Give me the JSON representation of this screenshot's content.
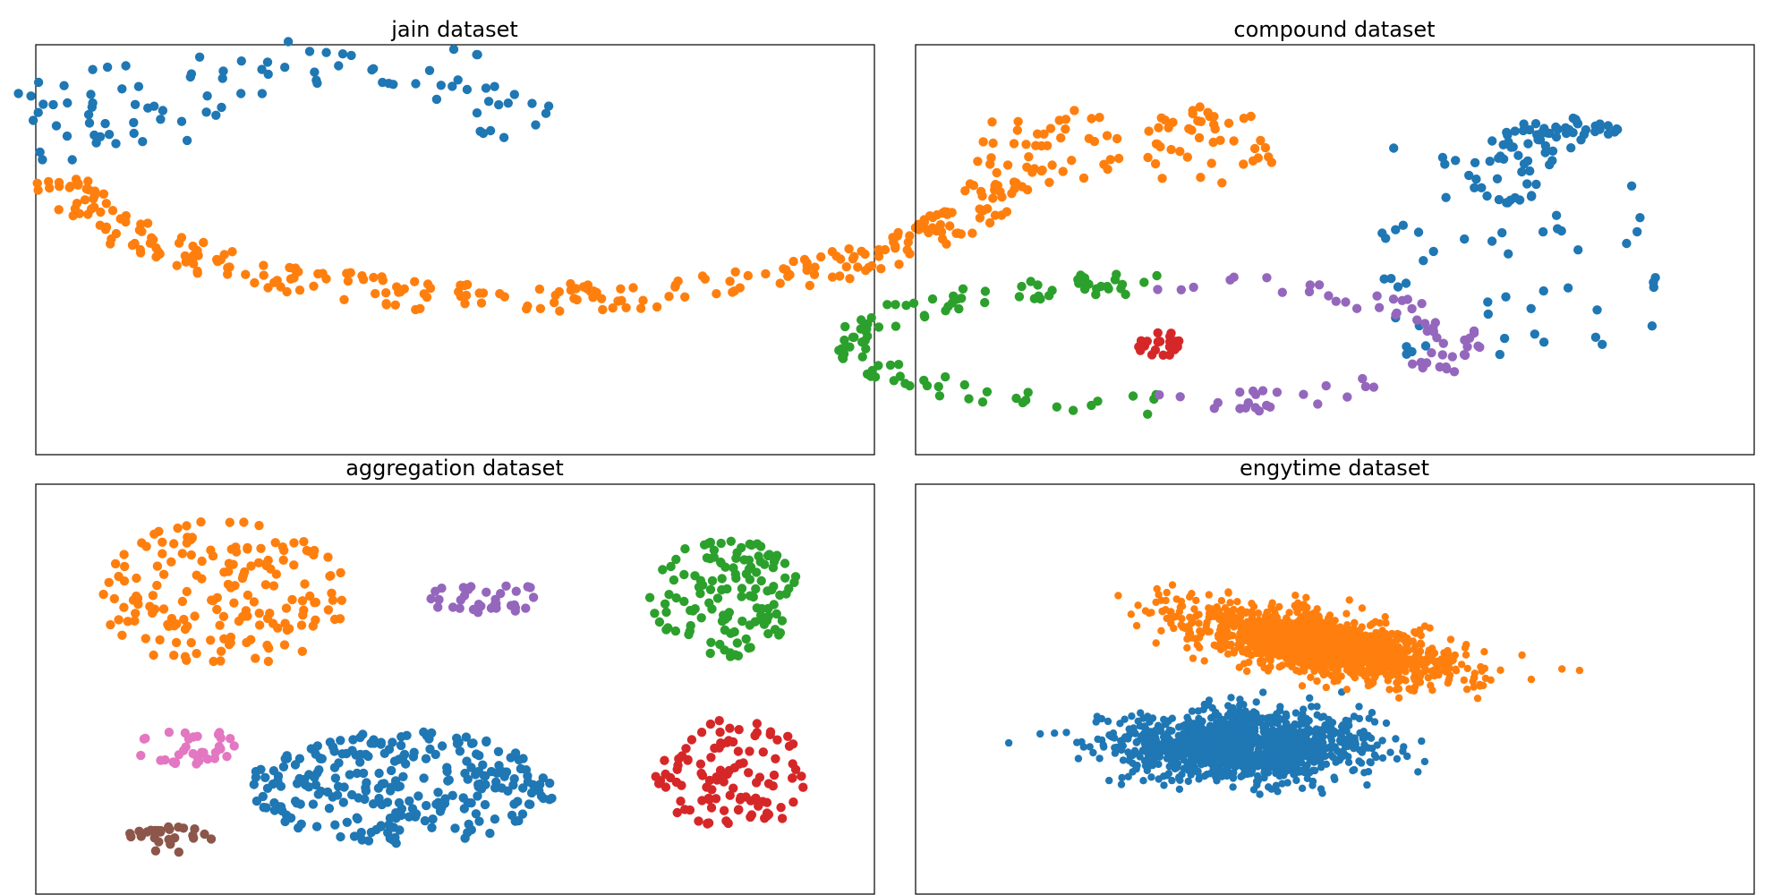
{
  "colors": {
    "blue": "#1f77b4",
    "orange": "#ff7f0e",
    "green": "#2ca02c",
    "red": "#d62728",
    "purple": "#9467bd",
    "brown": "#8c564b",
    "pink": "#e377c2"
  },
  "chart_data": [
    {
      "type": "scatter",
      "title": "jain dataset",
      "axes_visible": false,
      "grid": false,
      "xlim": [
        0,
        100
      ],
      "ylim": [
        0,
        100
      ],
      "clusters": [
        {
          "color": "blue",
          "shape": "upper-arc",
          "count": 95,
          "seed": 11,
          "segments": [
            {
              "center": [
                12,
                85
              ],
              "radius": [
                12,
                15
              ],
              "angle": [
                100,
                260
              ],
              "band": 6,
              "n": 30
            },
            {
              "center": [
                35,
                70
              ],
              "radius": [
                30,
                28
              ],
              "angle": [
                20,
                160
              ],
              "band": 7,
              "n": 65
            }
          ]
        },
        {
          "color": "orange",
          "shape": "lower-arc",
          "count": 280,
          "seed": 12,
          "segments": [
            {
              "center": [
                60,
                75
              ],
              "radius": [
                38,
                62
              ],
              "angle": [
                190,
                350
              ],
              "band": 4,
              "n": 280
            }
          ]
        }
      ]
    },
    {
      "type": "scatter",
      "title": "compound dataset",
      "axes_visible": false,
      "grid": false,
      "xlim": [
        0,
        100
      ],
      "ylim": [
        0,
        100
      ],
      "clusters": [
        {
          "color": "orange",
          "shape": "two-clouds",
          "count": 90,
          "seed": 21,
          "blobs": [
            {
              "center": [
                13,
                77
              ],
              "spread": [
                10,
                12
              ],
              "n": 45
            },
            {
              "center": [
                34,
                77
              ],
              "spread": [
                9,
                12
              ],
              "n": 45
            }
          ]
        },
        {
          "color": "blue",
          "shape": "sparse-field-with-hook",
          "count": 160,
          "seed": 22,
          "blobs": [
            {
              "center": [
                73,
                72
              ],
              "spread": [
                6,
                10
              ],
              "n": 40
            },
            {
              "center": [
                80,
                82
              ],
              "spread": [
                7,
                3
              ],
              "n": 35
            },
            {
              "center": [
                74,
                50
              ],
              "spread": [
                18,
                28
              ],
              "n": 55,
              "uniform": true
            }
          ]
        },
        {
          "color": "green",
          "shape": "ring-left",
          "count": 105,
          "seed": 23,
          "segments": [
            {
              "center": [
                27,
                25
              ],
              "radius": [
                16,
                39
              ],
              "angle": [
                90,
                270
              ],
              "band": 3,
              "n": 105
            }
          ]
        },
        {
          "color": "purple",
          "shape": "ring-right",
          "count": 75,
          "seed": 24,
          "segments": [
            {
              "center": [
                27,
                25
              ],
              "radius": [
                16,
                39
              ],
              "angle": [
                -90,
                90
              ],
              "band": 3,
              "n": 75
            }
          ]
        },
        {
          "color": "red",
          "shape": "core",
          "count": 22,
          "seed": 25,
          "blobs": [
            {
              "center": [
                27,
                25
              ],
              "spread": [
                3,
                4
              ],
              "n": 22
            }
          ]
        }
      ]
    },
    {
      "type": "scatter",
      "title": "aggregation dataset",
      "axes_visible": false,
      "grid": false,
      "xlim": [
        0,
        100
      ],
      "ylim": [
        0,
        100
      ],
      "clusters": [
        {
          "color": "orange",
          "shape": "fan",
          "count": 170,
          "seed": 31,
          "blobs": [
            {
              "center": [
                20,
                75
              ],
              "spread": [
                16,
                20
              ],
              "n": 170
            }
          ]
        },
        {
          "color": "purple",
          "shape": "small-band",
          "count": 34,
          "seed": 32,
          "blobs": [
            {
              "center": [
                54,
                74
              ],
              "spread": [
                9,
                4
              ],
              "n": 34
            }
          ]
        },
        {
          "color": "green",
          "shape": "disc",
          "count": 130,
          "seed": 33,
          "blobs": [
            {
              "center": [
                85,
                74
              ],
              "spread": [
                10,
                16
              ],
              "n": 130
            }
          ]
        },
        {
          "color": "red",
          "shape": "disc",
          "count": 110,
          "seed": 34,
          "blobs": [
            {
              "center": [
                86,
                27
              ],
              "spread": [
                10,
                15
              ],
              "n": 110
            }
          ]
        },
        {
          "color": "pink",
          "shape": "small-blob",
          "count": 34,
          "seed": 35,
          "blobs": [
            {
              "center": [
                15,
                35
              ],
              "spread": [
                7,
                5
              ],
              "n": 34
            }
          ]
        },
        {
          "color": "blue",
          "shape": "large-ellipse",
          "count": 270,
          "seed": 36,
          "blobs": [
            {
              "center": [
                43,
                24
              ],
              "spread": [
                20,
                15
              ],
              "n": 270
            }
          ]
        },
        {
          "color": "brown",
          "shape": "small-blob",
          "count": 26,
          "seed": 37,
          "blobs": [
            {
              "center": [
                13,
                10
              ],
              "spread": [
                6,
                3.5
              ],
              "n": 26
            }
          ]
        }
      ]
    },
    {
      "type": "scatter",
      "title": "engytime dataset",
      "axes_visible": false,
      "grid": false,
      "xlim": [
        0,
        100
      ],
      "ylim": [
        0,
        100
      ],
      "clusters": [
        {
          "color": "blue",
          "shape": "gaussian",
          "count": 1300,
          "seed": 41,
          "blobs": [
            {
              "center": [
                38,
                35
              ],
              "spread": [
                16,
                9
              ],
              "n": 1300,
              "gaussian": true,
              "cut": [
                null,
                50
              ]
            }
          ]
        },
        {
          "color": "orange",
          "shape": "tilted-gaussian",
          "count": 1300,
          "seed": 42,
          "blobs": [
            {
              "center": [
                48,
                62
              ],
              "spread": [
                18,
                8
              ],
              "n": 1300,
              "gaussian": true,
              "tilt": -0.35,
              "cut": [
                47,
                null
              ]
            }
          ]
        }
      ]
    }
  ]
}
